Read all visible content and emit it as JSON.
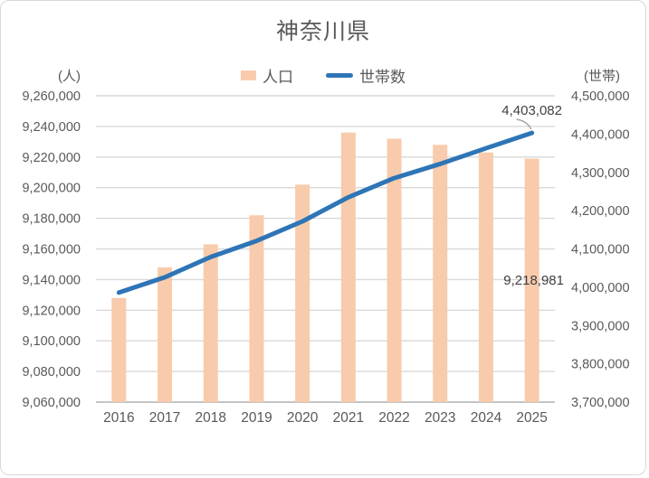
{
  "title": "神奈川県",
  "axis_units": {
    "left": "(人)",
    "right": "(世帯)"
  },
  "legend": {
    "population_label": "人口",
    "households_label": "世帯数"
  },
  "colors": {
    "bar_fill": "#F8CBAD",
    "line_stroke": "#2E75B6",
    "gridline": "#D9D9D9",
    "axis_line": "#BFBFBF",
    "tick_text": "#595959",
    "title_text": "#595959",
    "data_label_text": "#404040",
    "leader_line": "#A6A6A6"
  },
  "annotations": {
    "households_last": "4,403,082",
    "population_last": "9,218,981"
  },
  "chart_data": {
    "type": "bar",
    "subtype": "combo-bar-line-dual-axis",
    "title": "神奈川県",
    "categories": [
      "2016",
      "2017",
      "2018",
      "2019",
      "2020",
      "2021",
      "2022",
      "2023",
      "2024",
      "2025"
    ],
    "series": [
      {
        "name": "人口",
        "type": "bar",
        "axis": "left",
        "color": "#F8CBAD",
        "values": [
          9128000,
          9148000,
          9163000,
          9182000,
          9202000,
          9236000,
          9232000,
          9228000,
          9223000,
          9218981
        ]
      },
      {
        "name": "世帯数",
        "type": "line",
        "axis": "right",
        "color": "#2E75B6",
        "values": [
          3986000,
          4026000,
          4079000,
          4121000,
          4172000,
          4235000,
          4285000,
          4322000,
          4363000,
          4403082
        ]
      }
    ],
    "left_axis": {
      "label": "(人)",
      "min": 9060000,
      "max": 9260000,
      "step": 20000
    },
    "right_axis": {
      "label": "(世帯)",
      "min": 3700000,
      "max": 4500000,
      "step": 100000
    },
    "data_labels": [
      {
        "series": "世帯数",
        "category": "2025",
        "text": "4,403,082"
      },
      {
        "series": "人口",
        "category": "2025",
        "text": "9,218,981"
      }
    ],
    "grid": true,
    "legend_position": "top-center",
    "legend_entries": [
      "人口",
      "世帯数"
    ]
  }
}
